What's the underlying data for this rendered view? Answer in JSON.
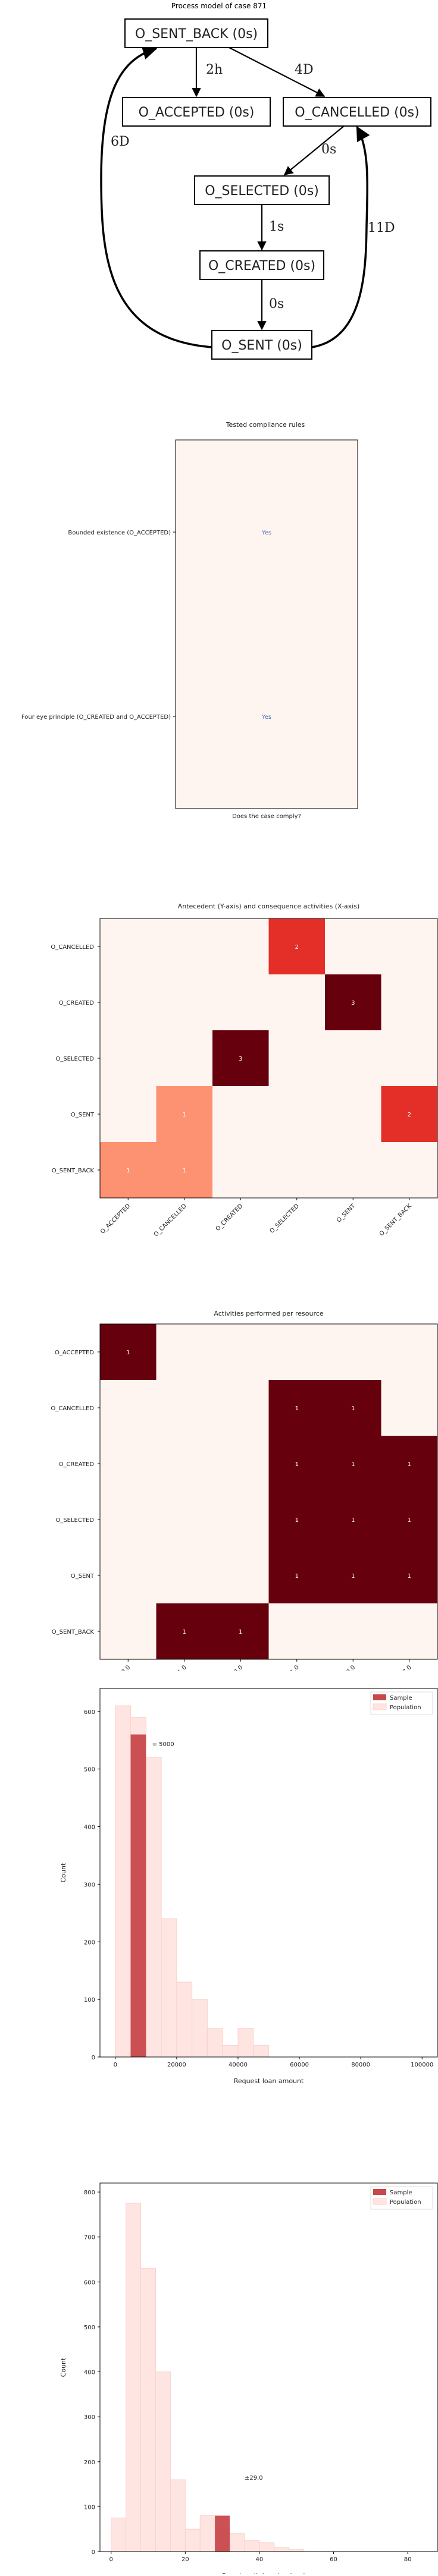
{
  "process_model": {
    "title": "Process model of case 871",
    "nodes": [
      {
        "id": "sentback",
        "label": "O_SENT_BACK (0s)"
      },
      {
        "id": "accepted",
        "label": "O_ACCEPTED (0s)"
      },
      {
        "id": "cancelled",
        "label": "O_CANCELLED (0s)"
      },
      {
        "id": "selected",
        "label": "O_SELECTED (0s)"
      },
      {
        "id": "created",
        "label": "O_CREATED (0s)"
      },
      {
        "id": "sent",
        "label": "O_SENT (0s)"
      }
    ],
    "edges": [
      {
        "from": "sentback",
        "to": "accepted",
        "label": "2h"
      },
      {
        "from": "sentback",
        "to": "cancelled",
        "label": "4D"
      },
      {
        "from": "cancelled",
        "to": "selected",
        "label": "0s"
      },
      {
        "from": "selected",
        "to": "created",
        "label": "1s"
      },
      {
        "from": "created",
        "to": "sent",
        "label": "0s"
      },
      {
        "from": "sent",
        "to": "sentback",
        "label": "6D"
      },
      {
        "from": "sent",
        "to": "cancelled",
        "label": "11D"
      }
    ]
  },
  "chart_data": [
    {
      "type": "heatmap",
      "title": "Tested compliance rules",
      "xlabel": "Does the case comply?",
      "rows": [
        "Bounded existence (O_ACCEPTED)",
        "Four eye principle (O_CREATED and O_ACCEPTED)"
      ],
      "cells": [
        "Yes",
        "Yes"
      ],
      "cell_color": "#fff5f0",
      "text_color": "#4a6fb5"
    },
    {
      "type": "heatmap",
      "title": "Antecedent (Y-axis) and consequence activities (X-axis)",
      "rows": [
        "O_CANCELLED",
        "O_CREATED",
        "O_SELECTED",
        "O_SENT",
        "O_SENT_BACK"
      ],
      "columns": [
        "O_ACCEPTED",
        "O_CANCELLED",
        "O_CREATED",
        "O_SELECTED",
        "O_SENT",
        "O_SENT_BACK"
      ],
      "values": [
        [
          0,
          0,
          0,
          2,
          0,
          0
        ],
        [
          0,
          0,
          0,
          0,
          3,
          0
        ],
        [
          0,
          0,
          3,
          0,
          0,
          0
        ],
        [
          0,
          1,
          0,
          0,
          0,
          2
        ],
        [
          1,
          1,
          0,
          0,
          0,
          0
        ]
      ],
      "max_value": 3,
      "colors": {
        "0": "#fff5f0",
        "1": "#fc9272",
        "2": "#e32f27",
        "3": "#67000d"
      }
    },
    {
      "type": "heatmap",
      "title": "Activities performed per resource",
      "rows": [
        "O_ACCEPTED",
        "O_CANCELLED",
        "O_CREATED",
        "O_SELECTED",
        "O_SENT",
        "O_SENT_BACK"
      ],
      "columns": [
        "11169.0",
        "10971.0",
        "10889.0",
        "11181.0",
        "10789.0",
        "10138.0"
      ],
      "values": [
        [
          1,
          0,
          0,
          0,
          0,
          0
        ],
        [
          0,
          0,
          0,
          1,
          1,
          0
        ],
        [
          0,
          0,
          0,
          1,
          1,
          1
        ],
        [
          0,
          0,
          0,
          1,
          1,
          1
        ],
        [
          0,
          0,
          0,
          1,
          1,
          1
        ],
        [
          0,
          1,
          1,
          0,
          0,
          0
        ]
      ],
      "colors": {
        "0": "#fff5f0",
        "1": "#67000d"
      }
    },
    {
      "type": "bar",
      "xlabel": "Request loan amount",
      "ylabel": "Count",
      "xlim": [
        -5000,
        105000
      ],
      "ylim": [
        0,
        640
      ],
      "xticks": [
        "0",
        "20000",
        "40000",
        "60000",
        "80000",
        "100000"
      ],
      "yticks": [
        "0",
        "100",
        "200",
        "300",
        "400",
        "500",
        "600"
      ],
      "legend": [
        "Sample",
        "Population"
      ],
      "legend_position": "top-right",
      "annotation": "= 5000",
      "annotation_at": [
        12000,
        540
      ],
      "bin_width": 5000,
      "series": [
        {
          "name": "Population",
          "color": "#fee5e2",
          "edge": "#fcd1cb",
          "bins": [
            0,
            5000,
            10000,
            15000,
            20000,
            25000,
            30000,
            35000,
            40000,
            45000,
            50000
          ],
          "values": [
            610,
            590,
            520,
            240,
            130,
            100,
            50,
            20,
            50,
            20,
            0
          ]
        },
        {
          "name": "Sample",
          "color": "#c8484b",
          "bins": [
            5000
          ],
          "values": [
            560
          ]
        }
      ]
    },
    {
      "type": "bar",
      "xlabel": "Case length in calendar days",
      "ylabel": "Count",
      "xlim": [
        -3,
        88
      ],
      "ylim": [
        0,
        820
      ],
      "xticks": [
        "0",
        "20",
        "40",
        "60",
        "80"
      ],
      "yticks": [
        "0",
        "100",
        "200",
        "300",
        "400",
        "500",
        "600",
        "700",
        "800"
      ],
      "legend": [
        "Sample",
        "Population"
      ],
      "legend_position": "top-right",
      "annotation": "±29.0",
      "annotation_at": [
        36,
        160
      ],
      "bin_width": 4,
      "series": [
        {
          "name": "Population",
          "color": "#fee5e2",
          "edge": "#fcd1cb",
          "bins": [
            0,
            4,
            8,
            12,
            16,
            20,
            24,
            28,
            32,
            36,
            40,
            44,
            48
          ],
          "values": [
            75,
            775,
            630,
            400,
            160,
            50,
            80,
            50,
            40,
            25,
            20,
            10,
            5
          ]
        },
        {
          "name": "Sample",
          "color": "#c8484b",
          "bins": [
            28
          ],
          "values": [
            80
          ]
        }
      ]
    }
  ]
}
